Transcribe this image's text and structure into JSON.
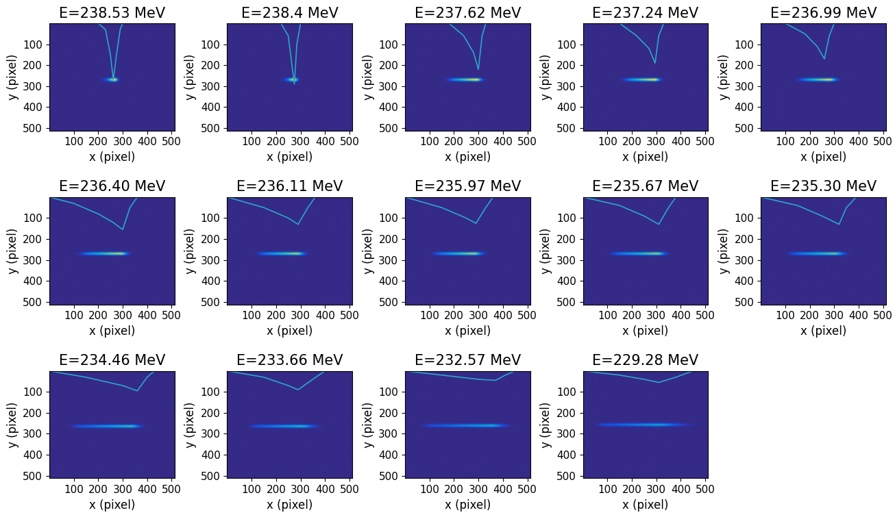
{
  "chart_data": [
    {
      "type": "heatmap",
      "title": "E=238.53 MeV",
      "x_label": "x (pixel)",
      "y_label": "y (pixel)",
      "xlim": [
        0,
        512
      ],
      "ylim": [
        512,
        0
      ],
      "xticks": [
        100,
        200,
        300,
        400,
        500
      ],
      "yticks": [
        100,
        200,
        300,
        400,
        500
      ],
      "clim": [
        0,
        1
      ],
      "beam": {
        "x_start": 230,
        "x_end": 290,
        "x_peak": 265,
        "y": 268,
        "width": 8,
        "intensity": 1.0
      },
      "series": [
        {
          "type": "line",
          "color": "#2aa7c9",
          "x": [
            200,
            230,
            250,
            262,
            275,
            290,
            300
          ],
          "y": [
            0,
            30,
            150,
            270,
            150,
            30,
            0
          ]
        }
      ]
    },
    {
      "type": "heatmap",
      "title": "E=238.4 MeV",
      "x_label": "x (pixel)",
      "y_label": "y (pixel)",
      "xlim": [
        0,
        512
      ],
      "ylim": [
        512,
        0
      ],
      "xticks": [
        100,
        200,
        300,
        400,
        500
      ],
      "yticks": [
        100,
        200,
        300,
        400,
        500
      ],
      "clim": [
        0,
        1
      ],
      "beam": {
        "x_start": 240,
        "x_end": 300,
        "x_peak": 275,
        "y": 268,
        "width": 8,
        "intensity": 1.0
      },
      "series": [
        {
          "type": "line",
          "color": "#2aa7c9",
          "x": [
            220,
            250,
            265,
            275,
            285,
            300
          ],
          "y": [
            0,
            60,
            200,
            290,
            100,
            0
          ]
        }
      ]
    },
    {
      "type": "heatmap",
      "title": "E=237.62 MeV",
      "x_label": "x (pixel)",
      "y_label": "y (pixel)",
      "xlim": [
        0,
        512
      ],
      "ylim": [
        512,
        0
      ],
      "xticks": [
        100,
        200,
        300,
        400,
        500
      ],
      "yticks": [
        100,
        200,
        300,
        400,
        500
      ],
      "clim": [
        0,
        1
      ],
      "beam": {
        "x_start": 180,
        "x_end": 330,
        "x_peak": 290,
        "y": 268,
        "width": 7,
        "intensity": 0.95
      },
      "series": [
        {
          "type": "line",
          "color": "#2aa7c9",
          "x": [
            180,
            240,
            280,
            300,
            315,
            330
          ],
          "y": [
            0,
            60,
            140,
            220,
            60,
            0
          ]
        }
      ]
    },
    {
      "type": "heatmap",
      "title": "E=237.24 MeV",
      "x_label": "x (pixel)",
      "y_label": "y (pixel)",
      "xlim": [
        0,
        512
      ],
      "ylim": [
        512,
        0
      ],
      "xticks": [
        100,
        200,
        300,
        400,
        500
      ],
      "yticks": [
        100,
        200,
        300,
        400,
        500
      ],
      "clim": [
        0,
        1
      ],
      "beam": {
        "x_start": 170,
        "x_end": 330,
        "x_peak": 290,
        "y": 268,
        "width": 7,
        "intensity": 0.95
      },
      "series": [
        {
          "type": "line",
          "color": "#2aa7c9",
          "x": [
            150,
            220,
            270,
            295,
            310,
            330
          ],
          "y": [
            0,
            60,
            120,
            190,
            60,
            0
          ]
        }
      ]
    },
    {
      "type": "heatmap",
      "title": "E=236.99 MeV",
      "x_label": "x (pixel)",
      "y_label": "y (pixel)",
      "xlim": [
        0,
        512
      ],
      "ylim": [
        512,
        0
      ],
      "xticks": [
        100,
        200,
        300,
        400,
        500
      ],
      "yticks": [
        100,
        200,
        300,
        400,
        500
      ],
      "clim": [
        0,
        1
      ],
      "beam": {
        "x_start": 160,
        "x_end": 330,
        "x_peak": 280,
        "y": 268,
        "width": 7,
        "intensity": 0.9
      },
      "series": [
        {
          "type": "line",
          "color": "#2aa7c9",
          "x": [
            100,
            180,
            230,
            260,
            280,
            300
          ],
          "y": [
            0,
            50,
            110,
            170,
            60,
            0
          ]
        }
      ]
    },
    {
      "type": "heatmap",
      "title": "E=236.40 MeV",
      "x_label": "x (pixel)",
      "y_label": "y (pixel)",
      "xlim": [
        0,
        512
      ],
      "ylim": [
        512,
        0
      ],
      "xticks": [
        100,
        200,
        300,
        400,
        500
      ],
      "yticks": [
        100,
        200,
        300,
        400,
        500
      ],
      "clim": [
        0,
        1
      ],
      "beam": {
        "x_start": 130,
        "x_end": 340,
        "x_peak": 290,
        "y": 268,
        "width": 7,
        "intensity": 0.85
      },
      "series": [
        {
          "type": "line",
          "color": "#2aa7c9",
          "x": [
            0,
            100,
            200,
            260,
            300,
            330,
            360
          ],
          "y": [
            0,
            30,
            80,
            120,
            155,
            50,
            0
          ]
        }
      ]
    },
    {
      "type": "heatmap",
      "title": "E=236.11 MeV",
      "x_label": "x (pixel)",
      "y_label": "y (pixel)",
      "xlim": [
        0,
        512
      ],
      "ylim": [
        512,
        0
      ],
      "xticks": [
        100,
        200,
        300,
        400,
        500
      ],
      "yticks": [
        100,
        200,
        300,
        400,
        500
      ],
      "clim": [
        0,
        1
      ],
      "beam": {
        "x_start": 130,
        "x_end": 340,
        "x_peak": 285,
        "y": 268,
        "width": 7,
        "intensity": 0.8
      },
      "series": [
        {
          "type": "line",
          "color": "#2aa7c9",
          "x": [
            0,
            150,
            250,
            290,
            330,
            360
          ],
          "y": [
            0,
            50,
            100,
            130,
            50,
            0
          ]
        }
      ]
    },
    {
      "type": "heatmap",
      "title": "E=235.97 MeV",
      "x_label": "x (pixel)",
      "y_label": "y (pixel)",
      "xlim": [
        0,
        512
      ],
      "ylim": [
        512,
        0
      ],
      "xticks": [
        100,
        200,
        300,
        400,
        500
      ],
      "yticks": [
        100,
        200,
        300,
        400,
        500
      ],
      "clim": [
        0,
        1
      ],
      "beam": {
        "x_start": 120,
        "x_end": 340,
        "x_peak": 280,
        "y": 268,
        "width": 7,
        "intensity": 0.8
      },
      "series": [
        {
          "type": "line",
          "color": "#2aa7c9",
          "x": [
            0,
            150,
            250,
            290,
            330,
            360
          ],
          "y": [
            0,
            50,
            100,
            125,
            50,
            0
          ]
        }
      ]
    },
    {
      "type": "heatmap",
      "title": "E=235.67 MeV",
      "x_label": "x (pixel)",
      "y_label": "y (pixel)",
      "xlim": [
        0,
        512
      ],
      "ylim": [
        512,
        0
      ],
      "xticks": [
        100,
        200,
        300,
        400,
        500
      ],
      "yticks": [
        100,
        200,
        300,
        400,
        500
      ],
      "clim": [
        0,
        1
      ],
      "beam": {
        "x_start": 120,
        "x_end": 360,
        "x_peak": 300,
        "y": 268,
        "width": 7,
        "intensity": 0.75
      },
      "series": [
        {
          "type": "line",
          "color": "#2aa7c9",
          "x": [
            0,
            150,
            250,
            310,
            350,
            380
          ],
          "y": [
            0,
            40,
            90,
            130,
            50,
            0
          ]
        }
      ]
    },
    {
      "type": "heatmap",
      "title": "E=235.30 MeV",
      "x_label": "x (pixel)",
      "y_label": "y (pixel)",
      "xlim": [
        0,
        512
      ],
      "ylim": [
        512,
        0
      ],
      "xticks": [
        100,
        200,
        300,
        400,
        500
      ],
      "yticks": [
        100,
        200,
        300,
        400,
        500
      ],
      "clim": [
        0,
        1
      ],
      "beam": {
        "x_start": 120,
        "x_end": 370,
        "x_peak": 300,
        "y": 268,
        "width": 7,
        "intensity": 0.7
      },
      "series": [
        {
          "type": "line",
          "color": "#2aa7c9",
          "x": [
            0,
            150,
            250,
            320,
            350,
            390
          ],
          "y": [
            0,
            40,
            90,
            130,
            50,
            0
          ]
        }
      ]
    },
    {
      "type": "heatmap",
      "title": "E=234.46 MeV",
      "x_label": "x (pixel)",
      "y_label": "y (pixel)",
      "xlim": [
        0,
        512
      ],
      "ylim": [
        512,
        0
      ],
      "xticks": [
        100,
        200,
        300,
        400,
        500
      ],
      "yticks": [
        100,
        200,
        300,
        400,
        500
      ],
      "clim": [
        0,
        1
      ],
      "beam": {
        "x_start": 100,
        "x_end": 400,
        "x_peak": 330,
        "y": 265,
        "width": 7,
        "intensity": 0.6
      },
      "series": [
        {
          "type": "line",
          "color": "#2aa7c9",
          "x": [
            0,
            150,
            300,
            360,
            400,
            430
          ],
          "y": [
            0,
            30,
            70,
            95,
            30,
            0
          ]
        }
      ]
    },
    {
      "type": "heatmap",
      "title": "E=233.66 MeV",
      "x_label": "x (pixel)",
      "y_label": "y (pixel)",
      "xlim": [
        0,
        512
      ],
      "ylim": [
        512,
        0
      ],
      "xticks": [
        100,
        200,
        300,
        400,
        500
      ],
      "yticks": [
        100,
        200,
        300,
        400,
        500
      ],
      "clim": [
        0,
        1
      ],
      "beam": {
        "x_start": 100,
        "x_end": 400,
        "x_peak": 300,
        "y": 265,
        "width": 7,
        "intensity": 0.55
      },
      "series": [
        {
          "type": "line",
          "color": "#2aa7c9",
          "x": [
            0,
            150,
            250,
            290,
            350,
            400
          ],
          "y": [
            0,
            30,
            70,
            90,
            40,
            0
          ]
        }
      ]
    },
    {
      "type": "heatmap",
      "title": "E=232.57 MeV",
      "x_label": "x (pixel)",
      "y_label": "y (pixel)",
      "xlim": [
        0,
        512
      ],
      "ylim": [
        512,
        0
      ],
      "xticks": [
        100,
        200,
        300,
        400,
        500
      ],
      "yticks": [
        100,
        200,
        300,
        400,
        500
      ],
      "clim": [
        0,
        1
      ],
      "beam": {
        "x_start": 80,
        "x_end": 450,
        "x_peak": 350,
        "y": 262,
        "width": 7,
        "intensity": 0.5
      },
      "series": [
        {
          "type": "line",
          "color": "#2aa7c9",
          "x": [
            0,
            150,
            300,
            370,
            410,
            450
          ],
          "y": [
            0,
            20,
            40,
            45,
            20,
            0
          ]
        }
      ]
    },
    {
      "type": "heatmap",
      "title": "E=229.28 MeV",
      "x_label": "x (pixel)",
      "y_label": "y (pixel)",
      "xlim": [
        0,
        512
      ],
      "ylim": [
        512,
        0
      ],
      "xticks": [
        100,
        200,
        300,
        400,
        500
      ],
      "yticks": [
        100,
        200,
        300,
        400,
        500
      ],
      "clim": [
        0,
        1
      ],
      "beam": {
        "x_start": 60,
        "x_end": 480,
        "x_peak": 300,
        "y": 258,
        "width": 7,
        "intensity": 0.45
      },
      "series": [
        {
          "type": "line",
          "color": "#2aa7c9",
          "x": [
            0,
            150,
            250,
            310,
            380,
            450
          ],
          "y": [
            0,
            20,
            40,
            55,
            30,
            0
          ]
        }
      ]
    }
  ]
}
